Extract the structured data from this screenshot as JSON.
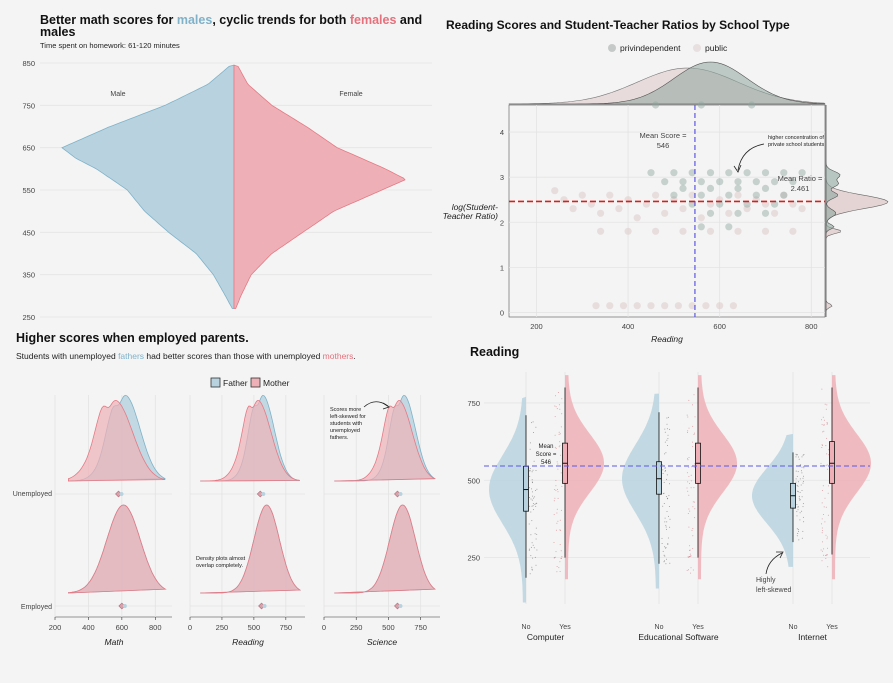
{
  "colors": {
    "male": "#7fb2c9",
    "female": "#e57a85",
    "male_fill": "#b8d3df",
    "female_fill": "#eeb0b6",
    "mean_line": "#5b57e6",
    "ratio_line": "#d61f1f",
    "private": "#8fa69f",
    "public": "#e6cfd0",
    "mother_label": "#e6707b",
    "father_label": "#7fb2c9"
  },
  "panel1": {
    "title_parts": [
      "Better math scores for ",
      "males",
      ", cyclic trends for both ",
      "females",
      " and"
    ],
    "title_line2": "males",
    "subtitle": "Time spent on homework: 61-120 minutes",
    "male_label": "Male",
    "female_label": "Female"
  },
  "panel2": {
    "title": "Reading Scores and Student-Teacher Ratios by School Type",
    "legend": [
      "privindependent",
      "public"
    ],
    "ylabel_line1": "log(Student-",
    "ylabel_line2": "Teacher Ratio)",
    "xlabel": "Reading",
    "mean_score_line1": "Mean Score =",
    "mean_score_line2": "546",
    "mean_ratio_line1": "Mean Ratio =",
    "mean_ratio_line2": "2.461",
    "note_line1": "higher concentration of",
    "note_line2": "private school students"
  },
  "panel3": {
    "title": "Higher scores when employed parents.",
    "subtitle_parts": [
      "Students with unemployed ",
      "fathers",
      " had better scores than those with unemployed ",
      "mothers",
      "."
    ],
    "legend": [
      "Father",
      "Mother"
    ],
    "rows": [
      "Unemployed",
      "Employed"
    ],
    "columns": [
      "Math",
      "Reading",
      "Science"
    ],
    "note_science": [
      "Scores more",
      "left-skewed for",
      "students with",
      "unemployed",
      "fathers."
    ],
    "note_reading": [
      "Density plots almost",
      "overlap completely."
    ]
  },
  "panel4": {
    "title": "Reading",
    "groups": [
      "Computer",
      "Educational Software",
      "Internet"
    ],
    "levels": [
      "No",
      "Yes"
    ],
    "mean_label": [
      "Mean",
      "Score =",
      "546"
    ],
    "note": [
      "Highly",
      "left-skewed"
    ]
  },
  "chart_data": [
    {
      "type": "violin",
      "title": "Better math scores for males, cyclic trends for both females and males",
      "subtitle": "Time spent on homework: 61-120 minutes",
      "series": [
        {
          "name": "Male",
          "y": [
            270,
            300,
            350,
            400,
            450,
            500,
            550,
            600,
            625,
            650,
            700,
            750,
            800,
            845
          ],
          "density": [
            0.01,
            0.05,
            0.12,
            0.22,
            0.38,
            0.52,
            0.62,
            0.8,
            0.92,
            1.0,
            0.72,
            0.4,
            0.15,
            0.02
          ]
        },
        {
          "name": "Female",
          "y": [
            270,
            300,
            350,
            400,
            450,
            500,
            550,
            575,
            600,
            650,
            700,
            750,
            800,
            845
          ],
          "density": [
            0.01,
            0.04,
            0.1,
            0.22,
            0.4,
            0.58,
            0.86,
            1.0,
            0.88,
            0.6,
            0.42,
            0.22,
            0.08,
            0.02
          ]
        }
      ],
      "ylim": [
        250,
        850
      ],
      "yticks": [
        250,
        350,
        450,
        550,
        650,
        750,
        850
      ]
    },
    {
      "type": "scatter",
      "title": "Reading Scores and Student-Teacher Ratios by School Type",
      "xlabel": "Reading",
      "ylabel": "log(Student-Teacher Ratio)",
      "xlim": [
        140,
        830
      ],
      "ylim": [
        -0.1,
        4.6
      ],
      "xticks": [
        200,
        400,
        600,
        800
      ],
      "yticks": [
        0,
        1,
        2,
        3,
        4
      ],
      "legend": [
        "privindependent",
        "public"
      ],
      "mean_score": 546,
      "mean_ratio": 2.461,
      "series": [
        {
          "name": "privindependent",
          "points": [
            [
              460,
              4.6
            ],
            [
              560,
              4.6
            ],
            [
              670,
              4.6
            ],
            [
              450,
              3.1
            ],
            [
              500,
              3.1
            ],
            [
              540,
              3.1
            ],
            [
              580,
              3.1
            ],
            [
              620,
              3.1
            ],
            [
              660,
              3.1
            ],
            [
              700,
              3.1
            ],
            [
              740,
              3.1
            ],
            [
              780,
              3.1
            ],
            [
              480,
              2.9
            ],
            [
              520,
              2.9
            ],
            [
              560,
              2.9
            ],
            [
              600,
              2.9
            ],
            [
              640,
              2.9
            ],
            [
              680,
              2.9
            ],
            [
              720,
              2.9
            ],
            [
              760,
              2.9
            ],
            [
              520,
              2.75
            ],
            [
              580,
              2.75
            ],
            [
              640,
              2.75
            ],
            [
              700,
              2.75
            ],
            [
              500,
              2.6
            ],
            [
              560,
              2.6
            ],
            [
              620,
              2.6
            ],
            [
              680,
              2.6
            ],
            [
              740,
              2.6
            ],
            [
              540,
              2.4
            ],
            [
              600,
              2.4
            ],
            [
              660,
              2.4
            ],
            [
              720,
              2.4
            ],
            [
              580,
              2.2
            ],
            [
              640,
              2.2
            ],
            [
              700,
              2.2
            ],
            [
              560,
              1.9
            ],
            [
              620,
              1.9
            ]
          ]
        },
        {
          "name": "public",
          "points": [
            [
              240,
              2.7
            ],
            [
              260,
              2.5
            ],
            [
              280,
              2.3
            ],
            [
              300,
              2.6
            ],
            [
              320,
              2.4
            ],
            [
              340,
              2.2
            ],
            [
              360,
              2.6
            ],
            [
              380,
              2.3
            ],
            [
              400,
              2.5
            ],
            [
              420,
              2.1
            ],
            [
              440,
              2.4
            ],
            [
              460,
              2.6
            ],
            [
              480,
              2.2
            ],
            [
              500,
              2.5
            ],
            [
              520,
              2.3
            ],
            [
              540,
              2.6
            ],
            [
              560,
              2.1
            ],
            [
              580,
              2.4
            ],
            [
              600,
              2.5
            ],
            [
              620,
              2.2
            ],
            [
              640,
              2.6
            ],
            [
              660,
              2.3
            ],
            [
              680,
              2.5
            ],
            [
              700,
              2.4
            ],
            [
              720,
              2.2
            ],
            [
              740,
              2.6
            ],
            [
              760,
              2.4
            ],
            [
              780,
              2.3
            ],
            [
              340,
              1.8
            ],
            [
              400,
              1.8
            ],
            [
              460,
              1.8
            ],
            [
              520,
              1.8
            ],
            [
              580,
              1.8
            ],
            [
              640,
              1.8
            ],
            [
              700,
              1.8
            ],
            [
              760,
              1.8
            ],
            [
              330,
              0.15
            ],
            [
              360,
              0.15
            ],
            [
              390,
              0.15
            ],
            [
              420,
              0.15
            ],
            [
              450,
              0.15
            ],
            [
              480,
              0.15
            ],
            [
              510,
              0.15
            ],
            [
              540,
              0.15
            ],
            [
              570,
              0.15
            ],
            [
              600,
              0.15
            ],
            [
              630,
              0.15
            ]
          ]
        }
      ]
    },
    {
      "type": "ridgeline",
      "title": "Higher scores when employed parents.",
      "legend": [
        "Father",
        "Mother"
      ],
      "rows": [
        "Unemployed",
        "Employed"
      ],
      "facets": [
        {
          "name": "Math",
          "xlim": [
            200,
            900
          ],
          "xticks": [
            200,
            400,
            600,
            800
          ],
          "unemployed": {
            "father_peak": 620,
            "mother_peak": 560,
            "mean": 580
          },
          "employed": {
            "father_peak": 610,
            "mother_peak": 610,
            "mean": 600
          }
        },
        {
          "name": "Reading",
          "xlim": [
            0,
            900
          ],
          "xticks": [
            0,
            250,
            500,
            750
          ],
          "unemployed": {
            "father_peak": 570,
            "mother_peak": 530,
            "mean": 550
          },
          "employed": {
            "father_peak": 600,
            "mother_peak": 600,
            "mean": 560
          }
        },
        {
          "name": "Science",
          "xlim": [
            0,
            900
          ],
          "xticks": [
            0,
            250,
            500,
            750
          ],
          "unemployed": {
            "father_peak": 620,
            "mother_peak": 580,
            "mean": 570
          },
          "employed": {
            "father_peak": 610,
            "mother_peak": 610,
            "mean": 570
          }
        }
      ]
    },
    {
      "type": "raincloud",
      "title": "Reading",
      "ylim": [
        100,
        850
      ],
      "yticks": [
        250,
        500,
        750
      ],
      "mean_score": 546,
      "groups": [
        {
          "name": "Computer",
          "No": {
            "median": 470,
            "q1": 400,
            "q3": 545,
            "lo": 185,
            "hi": 710
          },
          "Yes": {
            "median": 555,
            "q1": 490,
            "q3": 620,
            "lo": 250,
            "hi": 800
          }
        },
        {
          "name": "Educational Software",
          "No": {
            "median": 505,
            "q1": 455,
            "q3": 560,
            "lo": 230,
            "hi": 720
          },
          "Yes": {
            "median": 555,
            "q1": 490,
            "q3": 620,
            "lo": 250,
            "hi": 800
          }
        },
        {
          "name": "Internet",
          "No": {
            "median": 450,
            "q1": 410,
            "q3": 490,
            "lo": 300,
            "hi": 590
          },
          "Yes": {
            "median": 555,
            "q1": 490,
            "q3": 625,
            "lo": 260,
            "hi": 800
          }
        }
      ]
    }
  ]
}
